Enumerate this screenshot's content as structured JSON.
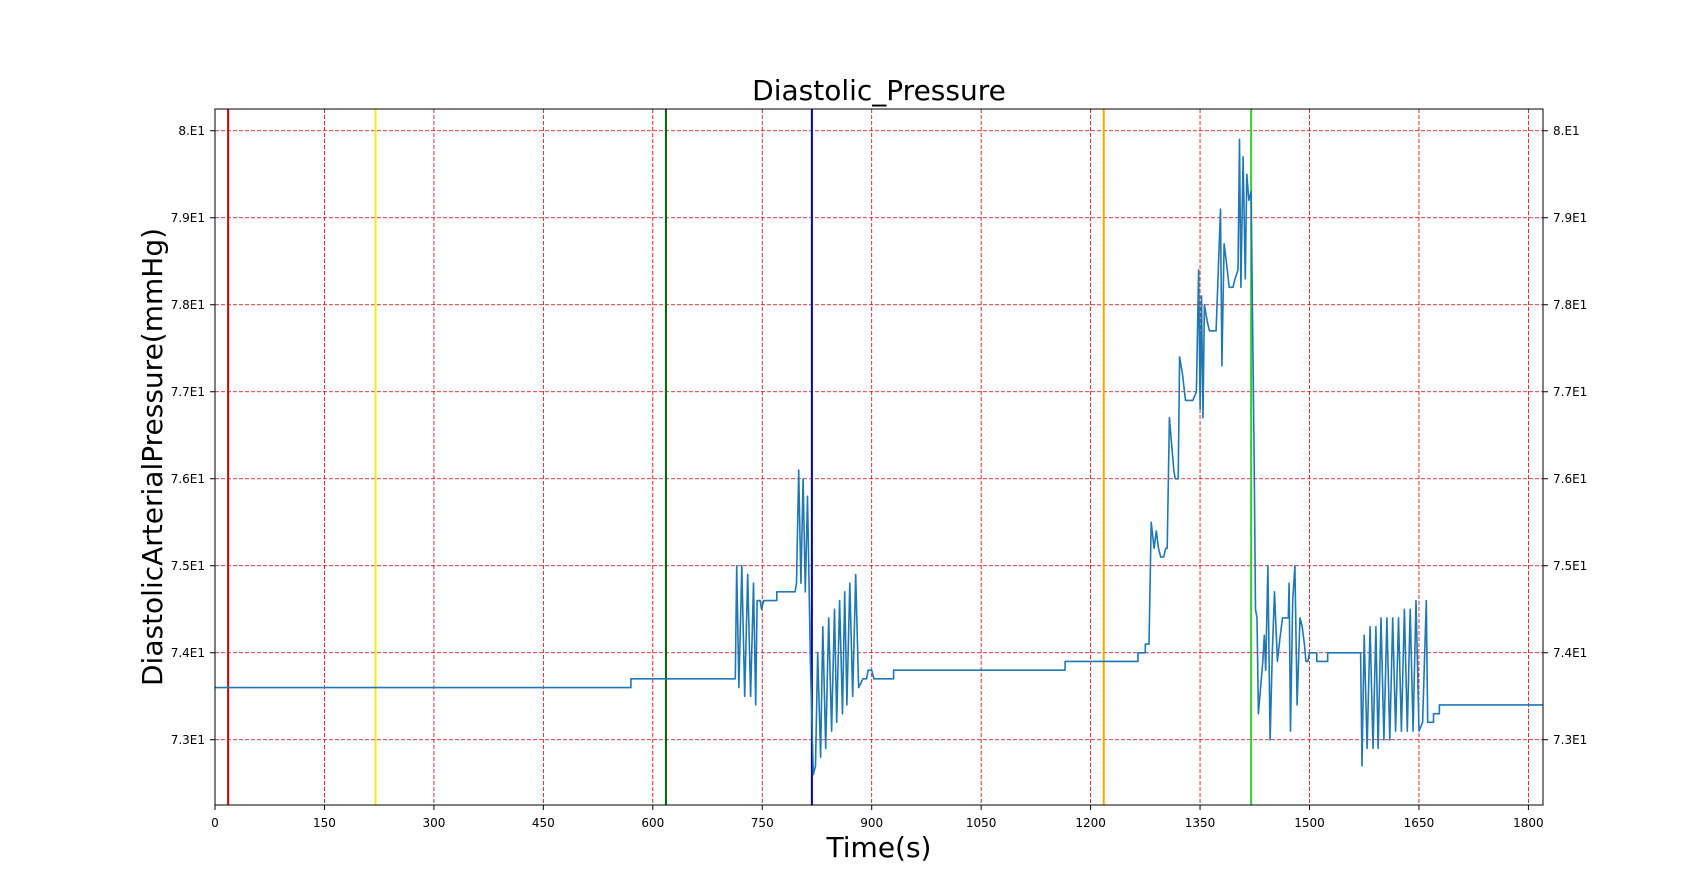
{
  "chart_data": {
    "type": "line",
    "title": "Diastolic_Pressure",
    "xlabel": "Time(s)",
    "ylabel": "DiastolicArterialPressure(mmHg)",
    "xlim": [
      0,
      1820
    ],
    "ylim": [
      72.25,
      80.25
    ],
    "x_ticks": [
      0,
      150,
      300,
      450,
      600,
      750,
      900,
      1050,
      1200,
      1350,
      1500,
      1650,
      1800
    ],
    "x_tick_labels": [
      "0",
      "150",
      "300",
      "450",
      "600",
      "750",
      "900",
      "1050",
      "1200",
      "1350",
      "1500",
      "1650",
      "1800"
    ],
    "y_ticks": [
      73,
      74,
      75,
      76,
      77,
      78,
      79,
      80
    ],
    "y_tick_labels": [
      "7.3E1",
      "7.4E1",
      "7.5E1",
      "7.6E1",
      "7.7E1",
      "7.8E1",
      "7.9E1",
      "8.E1"
    ],
    "grid": true,
    "grid_color": "#cc0000",
    "line_color": "#1f77b4",
    "event_lines": [
      {
        "x": 18,
        "color": "#cc0000"
      },
      {
        "x": 220,
        "color": "#f2ec1c"
      },
      {
        "x": 618,
        "color": "#006400"
      },
      {
        "x": 818,
        "color": "#0000aa"
      },
      {
        "x": 1218,
        "color": "#ffa500"
      },
      {
        "x": 1420,
        "color": "#32cd32"
      }
    ],
    "series": [
      {
        "values": [
          [
            0,
            73.6
          ],
          [
            570,
            73.6
          ],
          [
            570,
            73.7
          ],
          [
            713,
            73.7
          ],
          [
            715,
            75.0
          ],
          [
            718,
            73.6
          ],
          [
            722,
            75.0
          ],
          [
            726,
            73.5
          ],
          [
            730,
            74.9
          ],
          [
            734,
            73.5
          ],
          [
            738,
            74.8
          ],
          [
            741,
            73.4
          ],
          [
            743,
            74.6
          ],
          [
            747,
            74.6
          ],
          [
            749,
            74.5
          ],
          [
            752,
            74.6
          ],
          [
            770,
            74.6
          ],
          [
            770,
            74.7
          ],
          [
            795,
            74.7
          ],
          [
            797,
            74.8
          ],
          [
            800,
            76.1
          ],
          [
            803,
            74.8
          ],
          [
            806,
            76.0
          ],
          [
            809,
            74.7
          ],
          [
            812,
            75.8
          ],
          [
            816,
            73.9
          ],
          [
            820,
            72.6
          ],
          [
            823,
            72.7
          ],
          [
            826,
            74.0
          ],
          [
            830,
            72.8
          ],
          [
            833,
            74.3
          ],
          [
            837,
            72.9
          ],
          [
            841,
            74.4
          ],
          [
            845,
            73.1
          ],
          [
            849,
            74.5
          ],
          [
            852,
            73.2
          ],
          [
            856,
            74.6
          ],
          [
            860,
            73.3
          ],
          [
            863,
            74.7
          ],
          [
            866,
            73.4
          ],
          [
            870,
            74.8
          ],
          [
            874,
            73.5
          ],
          [
            878,
            74.9
          ],
          [
            882,
            73.6
          ],
          [
            888,
            73.7
          ],
          [
            893,
            73.7
          ],
          [
            895,
            73.8
          ],
          [
            900,
            73.8
          ],
          [
            903,
            73.7
          ],
          [
            930,
            73.7
          ],
          [
            930,
            73.8
          ],
          [
            1165,
            73.8
          ],
          [
            1165,
            73.9
          ],
          [
            1265,
            73.9
          ],
          [
            1265,
            74.0
          ],
          [
            1275,
            74.0
          ],
          [
            1275,
            74.1
          ],
          [
            1280,
            74.1
          ],
          [
            1283,
            75.5
          ],
          [
            1287,
            75.2
          ],
          [
            1290,
            75.4
          ],
          [
            1293,
            75.2
          ],
          [
            1296,
            75.1
          ],
          [
            1300,
            75.1
          ],
          [
            1303,
            75.2
          ],
          [
            1305,
            75.2
          ],
          [
            1308,
            76.7
          ],
          [
            1311,
            76.4
          ],
          [
            1314,
            76.1
          ],
          [
            1316,
            76.0
          ],
          [
            1320,
            76.0
          ],
          [
            1322,
            77.4
          ],
          [
            1326,
            77.2
          ],
          [
            1330,
            76.9
          ],
          [
            1340,
            76.9
          ],
          [
            1345,
            77.0
          ],
          [
            1348,
            78.4
          ],
          [
            1350,
            76.8
          ],
          [
            1352,
            78.1
          ],
          [
            1354,
            76.7
          ],
          [
            1356,
            78.0
          ],
          [
            1360,
            77.8
          ],
          [
            1363,
            77.7
          ],
          [
            1372,
            77.7
          ],
          [
            1375,
            78.4
          ],
          [
            1378,
            79.1
          ],
          [
            1380,
            77.3
          ],
          [
            1383,
            78.7
          ],
          [
            1386,
            78.5
          ],
          [
            1390,
            78.2
          ],
          [
            1395,
            78.2
          ],
          [
            1398,
            78.3
          ],
          [
            1402,
            78.4
          ],
          [
            1404,
            79.9
          ],
          [
            1406,
            78.2
          ],
          [
            1409,
            79.7
          ],
          [
            1412,
            78.3
          ],
          [
            1414,
            79.5
          ],
          [
            1417,
            79.2
          ],
          [
            1420,
            79.3
          ],
          [
            1422,
            77.8
          ],
          [
            1424,
            76.3
          ],
          [
            1426,
            74.5
          ],
          [
            1428,
            74.4
          ],
          [
            1430,
            73.3
          ],
          [
            1433,
            73.6
          ],
          [
            1436,
            73.9
          ],
          [
            1438,
            74.2
          ],
          [
            1440,
            73.8
          ],
          [
            1443,
            75.0
          ],
          [
            1446,
            73.0
          ],
          [
            1449,
            74.0
          ],
          [
            1452,
            74.7
          ],
          [
            1456,
            73.9
          ],
          [
            1460,
            74.2
          ],
          [
            1463,
            74.4
          ],
          [
            1466,
            74.4
          ],
          [
            1471,
            74.4
          ],
          [
            1472,
            74.8
          ],
          [
            1474,
            73.1
          ],
          [
            1477,
            74.6
          ],
          [
            1480,
            75.0
          ],
          [
            1483,
            73.4
          ],
          [
            1487,
            74.4
          ],
          [
            1490,
            74.3
          ],
          [
            1493,
            74.1
          ],
          [
            1495,
            73.9
          ],
          [
            1498,
            73.9
          ],
          [
            1500,
            74.0
          ],
          [
            1510,
            74.0
          ],
          [
            1510,
            73.9
          ],
          [
            1525,
            73.9
          ],
          [
            1525,
            74.0
          ],
          [
            1570,
            74.0
          ],
          [
            1572,
            72.7
          ],
          [
            1575,
            74.2
          ],
          [
            1579,
            72.9
          ],
          [
            1583,
            74.3
          ],
          [
            1587,
            72.9
          ],
          [
            1591,
            74.3
          ],
          [
            1594,
            72.9
          ],
          [
            1598,
            74.4
          ],
          [
            1602,
            73.0
          ],
          [
            1606,
            74.4
          ],
          [
            1610,
            73.0
          ],
          [
            1614,
            74.4
          ],
          [
            1618,
            73.1
          ],
          [
            1622,
            74.4
          ],
          [
            1626,
            73.1
          ],
          [
            1630,
            74.5
          ],
          [
            1634,
            73.1
          ],
          [
            1638,
            74.5
          ],
          [
            1642,
            73.1
          ],
          [
            1646,
            74.6
          ],
          [
            1650,
            73.1
          ],
          [
            1655,
            73.2
          ],
          [
            1660,
            74.6
          ],
          [
            1662,
            73.2
          ],
          [
            1665,
            73.2
          ],
          [
            1670,
            73.2
          ],
          [
            1670,
            73.3
          ],
          [
            1678,
            73.3
          ],
          [
            1678,
            73.4
          ],
          [
            1820,
            73.4
          ]
        ]
      }
    ]
  }
}
